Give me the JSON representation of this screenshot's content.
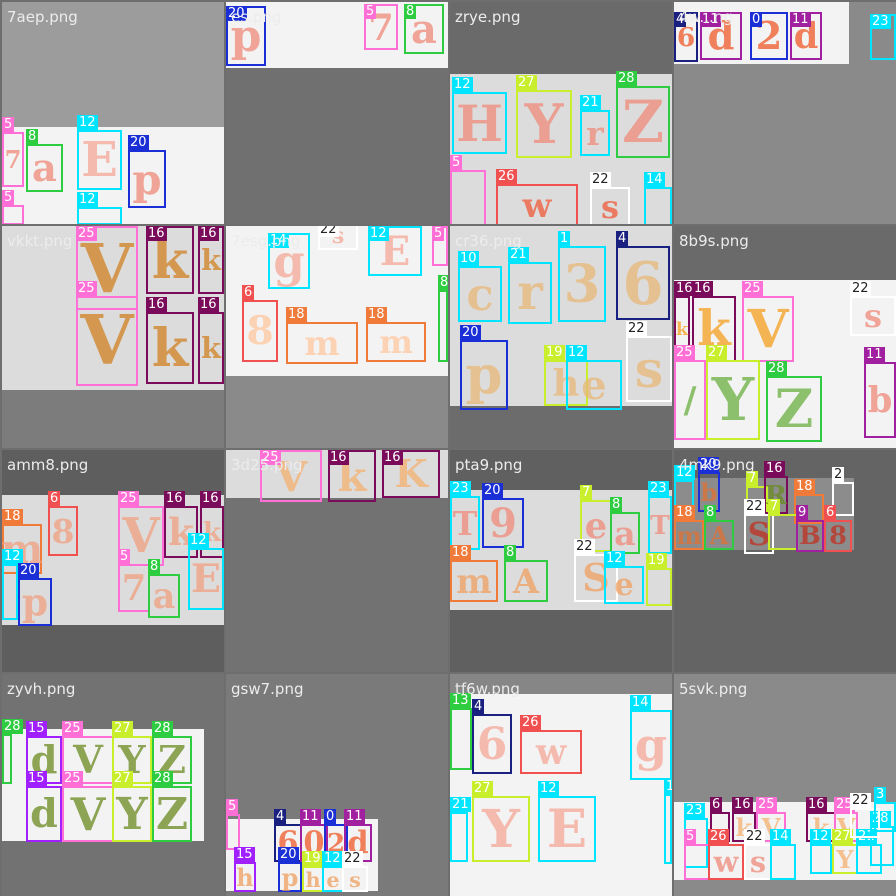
{
  "tiles": [
    {
      "title": "7aep.png",
      "bg": "#9c9c9c"
    },
    {
      "title": "es.png",
      "bg": "#707070"
    },
    {
      "title": "zrye.png",
      "bg": "#6a6a6a"
    },
    {
      "title": "4w...ng",
      "bg": "#8a8a8a"
    },
    {
      "title": "vkkt.png",
      "bg": "#7c7c7c"
    },
    {
      "title": "7esg.png",
      "bg": "#8a8a8a"
    },
    {
      "title": "cr36.png",
      "bg": "#6c6c6c"
    },
    {
      "title": "8b9s.png",
      "bg": "#6a6a6a"
    },
    {
      "title": "amm8.png",
      "bg": "#5e5e5e"
    },
    {
      "title": "3d25.png",
      "bg": "#727272"
    },
    {
      "title": "pta9.png",
      "bg": "#606060"
    },
    {
      "title": "4mk9.png",
      "bg": "#646464"
    },
    {
      "title": "zyvh.png",
      "bg": "#727272"
    },
    {
      "title": "gsw7.png",
      "bg": "#7a7a7a"
    },
    {
      "title": "tf6w.png",
      "bg": "#868686"
    },
    {
      "title": "5svk.png",
      "bg": "#8a8a8a"
    }
  ],
  "labels": [
    {
      "t": 0,
      "c": "#ff6fd6",
      "n": "5",
      "g": "7",
      "gc": "#f08a7a"
    },
    {
      "t": 0,
      "c": "#2ecc40",
      "n": "8",
      "g": "a",
      "gc": "#f08a7a"
    },
    {
      "t": 0,
      "c": "#00e5ff",
      "n": "12",
      "g": "E",
      "gc": "#f5a898"
    },
    {
      "t": 0,
      "c": "#1a2fd6",
      "n": "20",
      "g": "p",
      "gc": "#f08a7a"
    },
    {
      "t": 0,
      "c": "#ff6fd6",
      "n": "5",
      "g": "",
      "gc": "#f08a7a"
    },
    {
      "t": 0,
      "c": "#00e5ff",
      "n": "12",
      "g": "",
      "gc": "#f08a7a"
    },
    {
      "t": 1,
      "c": "#1a2fd6",
      "n": "20",
      "g": "p",
      "gc": "#f08a7a"
    },
    {
      "t": 1,
      "c": "#ff6fd6",
      "n": "5",
      "g": "7",
      "gc": "#f08a7a"
    },
    {
      "t": 1,
      "c": "#2ecc40",
      "n": "8",
      "g": "a",
      "gc": "#f08a7a"
    },
    {
      "t": 2,
      "c": "#00e5ff",
      "n": "12",
      "g": "H",
      "gc": "#f08a7a"
    },
    {
      "t": 2,
      "c": "#c8ee2c",
      "n": "27",
      "g": "Y",
      "gc": "#f08a7a"
    },
    {
      "t": 2,
      "c": "#00e5ff",
      "n": "21",
      "g": "r",
      "gc": "#f08a7a"
    },
    {
      "t": 2,
      "c": "#2ecc40",
      "n": "28",
      "g": "Z",
      "gc": "#f08a7a"
    },
    {
      "t": 2,
      "c": "#ff6fd6",
      "n": "5",
      "g": "",
      "gc": "#f05a3a"
    },
    {
      "t": 2,
      "c": "#f05050",
      "n": "26",
      "g": "w",
      "gc": "#f05a3a"
    },
    {
      "t": 2,
      "c": "#ffffff",
      "n": "22",
      "g": "s",
      "gc": "#f05a3a"
    },
    {
      "t": 2,
      "c": "#00e5ff",
      "n": "14",
      "g": "",
      "gc": "#f05a3a"
    },
    {
      "t": 3,
      "c": "#1a2080",
      "n": "4",
      "g": "6",
      "gc": "#f05a2a"
    },
    {
      "t": 3,
      "c": "#a020a0",
      "n": "11",
      "g": "d",
      "gc": "#f05a2a"
    },
    {
      "t": 3,
      "c": "#1a2fd6",
      "n": "0",
      "g": "2",
      "gc": "#f05a2a"
    },
    {
      "t": 3,
      "c": "#a020a0",
      "n": "11",
      "g": "d",
      "gc": "#f05a2a"
    },
    {
      "t": 3,
      "c": "#00e5ff",
      "n": "23",
      "g": "",
      "gc": "#2ecc40"
    },
    {
      "t": 4,
      "c": "#ff6fd6",
      "n": "25",
      "g": "V",
      "gc": "#d08020"
    },
    {
      "t": 4,
      "c": "#7a0a5a",
      "n": "16",
      "g": "k",
      "gc": "#d08020"
    },
    {
      "t": 4,
      "c": "#7a0a5a",
      "n": "16",
      "g": "k",
      "gc": "#d08020"
    },
    {
      "t": 4,
      "c": "#ff6fd6",
      "n": "25",
      "g": "V",
      "gc": "#d08020"
    },
    {
      "t": 4,
      "c": "#7a0a5a",
      "n": "16",
      "g": "k",
      "gc": "#d08020"
    },
    {
      "t": 4,
      "c": "#7a0a5a",
      "n": "16",
      "g": "k",
      "gc": "#d08020"
    },
    {
      "t": 5,
      "c": "#00e5ff",
      "n": "14",
      "g": "g",
      "gc": "#f5a898"
    },
    {
      "t": 5,
      "c": "#ffffff",
      "n": "22",
      "g": "s",
      "gc": "#f5a898"
    },
    {
      "t": 5,
      "c": "#00e5ff",
      "n": "12",
      "g": "E",
      "gc": "#f5a898"
    },
    {
      "t": 5,
      "c": "#ff6fd6",
      "n": "5",
      "g": "",
      "gc": "#f5a898"
    },
    {
      "t": 5,
      "c": "#f05050",
      "n": "6",
      "g": "8",
      "gc": "#ffc8a0"
    },
    {
      "t": 5,
      "c": "#f07a3a",
      "n": "18",
      "g": "m",
      "gc": "#ffc8a0"
    },
    {
      "t": 5,
      "c": "#f07a3a",
      "n": "18",
      "g": "m",
      "gc": "#ffc8a0"
    },
    {
      "t": 5,
      "c": "#2ecc40",
      "n": "8",
      "g": "",
      "gc": "#ffc8a0"
    },
    {
      "t": 6,
      "c": "#00e5ff",
      "n": "10",
      "g": "c",
      "gc": "#e8b878"
    },
    {
      "t": 6,
      "c": "#00e5ff",
      "n": "21",
      "g": "r",
      "gc": "#e8b878"
    },
    {
      "t": 6,
      "c": "#00e5ff",
      "n": "1",
      "g": "3",
      "gc": "#e8b878"
    },
    {
      "t": 6,
      "c": "#1a2080",
      "n": "4",
      "g": "6",
      "gc": "#e8b878"
    },
    {
      "t": 6,
      "c": "#1a2fd6",
      "n": "20",
      "g": "p",
      "gc": "#e8b878"
    },
    {
      "t": 6,
      "c": "#c8ee2c",
      "n": "19",
      "g": "h",
      "gc": "#e8b878"
    },
    {
      "t": 6,
      "c": "#00e5ff",
      "n": "12",
      "g": "e",
      "gc": "#e8b878"
    },
    {
      "t": 6,
      "c": "#ffffff",
      "n": "22",
      "g": "s",
      "gc": "#e8b878"
    },
    {
      "t": 7,
      "c": "#7a0a5a",
      "n": "16",
      "g": "k",
      "gc": "#f5a020"
    },
    {
      "t": 7,
      "c": "#7a0a5a",
      "n": "16",
      "g": "k",
      "gc": "#f5a020"
    },
    {
      "t": 7,
      "c": "#ff6fd6",
      "n": "25",
      "g": "V",
      "gc": "#f5a020"
    },
    {
      "t": 7,
      "c": "#ffffff",
      "n": "22",
      "g": "s",
      "gc": "#f08a7a"
    },
    {
      "t": 7,
      "c": "#ff6fd6",
      "n": "25",
      "g": "/",
      "gc": "#6ab040"
    },
    {
      "t": 7,
      "c": "#c8ee2c",
      "n": "27",
      "g": "Y",
      "gc": "#6ab040"
    },
    {
      "t": 7,
      "c": "#2ecc40",
      "n": "28",
      "g": "Z",
      "gc": "#6ab040"
    },
    {
      "t": 7,
      "c": "#a020a0",
      "n": "11",
      "g": "b",
      "gc": "#f08a7a"
    },
    {
      "t": 8,
      "c": "#f07a3a",
      "n": "18",
      "g": "m",
      "gc": "#f0a080"
    },
    {
      "t": 8,
      "c": "#f05050",
      "n": "6",
      "g": "8",
      "gc": "#f0a080"
    },
    {
      "t": 8,
      "c": "#ff6fd6",
      "n": "25",
      "g": "V",
      "gc": "#f0a080"
    },
    {
      "t": 8,
      "c": "#7a0a5a",
      "n": "16",
      "g": "k",
      "gc": "#f0a080"
    },
    {
      "t": 8,
      "c": "#7a0a5a",
      "n": "16",
      "g": "k",
      "gc": "#f0a080"
    },
    {
      "t": 8,
      "c": "#00e5ff",
      "n": "12",
      "g": "",
      "gc": "#f0a080"
    },
    {
      "t": 8,
      "c": "#1a2fd6",
      "n": "20",
      "g": "p",
      "gc": "#f0a080"
    },
    {
      "t": 8,
      "c": "#ff6fd6",
      "n": "5",
      "g": "7",
      "gc": "#f0a080"
    },
    {
      "t": 8,
      "c": "#2ecc40",
      "n": "8",
      "g": "a",
      "gc": "#f0a080"
    },
    {
      "t": 8,
      "c": "#00e5ff",
      "n": "12",
      "g": "E",
      "gc": "#f0a080"
    },
    {
      "t": 9,
      "c": "#ff6fd6",
      "n": "25",
      "g": "V",
      "gc": "#f5b070"
    },
    {
      "t": 9,
      "c": "#7a0a5a",
      "n": "16",
      "g": "k",
      "gc": "#f5b070"
    },
    {
      "t": 9,
      "c": "#7a0a5a",
      "n": "16",
      "g": "K",
      "gc": "#f5b070"
    },
    {
      "t": 10,
      "c": "#00e5ff",
      "n": "23",
      "g": "T",
      "gc": "#f08a7a"
    },
    {
      "t": 10,
      "c": "#1a2fd6",
      "n": "20",
      "g": "9",
      "gc": "#f08a7a"
    },
    {
      "t": 10,
      "c": "#c8ee2c",
      "n": "7",
      "g": "e",
      "gc": "#f08a7a"
    },
    {
      "t": 10,
      "c": "#2ecc40",
      "n": "8",
      "g": "a",
      "gc": "#f08a7a"
    },
    {
      "t": 10,
      "c": "#00e5ff",
      "n": "23",
      "g": "T",
      "gc": "#f08a7a"
    },
    {
      "t": 10,
      "c": "#f07a3a",
      "n": "18",
      "g": "m",
      "gc": "#f0a060"
    },
    {
      "t": 10,
      "c": "#2ecc40",
      "n": "8",
      "g": "A",
      "gc": "#f0a060"
    },
    {
      "t": 10,
      "c": "#ffffff",
      "n": "22",
      "g": "S",
      "gc": "#f0a060"
    },
    {
      "t": 10,
      "c": "#00e5ff",
      "n": "12",
      "g": "e",
      "gc": "#f0a060"
    },
    {
      "t": 10,
      "c": "#c8ee2c",
      "n": "19",
      "g": "",
      "gc": "#f0a060"
    },
    {
      "t": 11,
      "c": "#00e5ff",
      "n": "12",
      "g": "",
      "gc": "#e07030"
    },
    {
      "t": 11,
      "c": "#1a2fd6",
      "n": "20",
      "g": "b",
      "gc": "#e07030"
    },
    {
      "t": 11,
      "c": "#c8ee2c",
      "n": "7",
      "g": "",
      "gc": "#6a8a20"
    },
    {
      "t": 11,
      "c": "#7a0a5a",
      "n": "16",
      "g": "R",
      "gc": "#6a8a20"
    },
    {
      "t": 11,
      "c": "#f07a3a",
      "n": "18",
      "g": "",
      "gc": "#6a8a20"
    },
    {
      "t": 11,
      "c": "#ffffff",
      "n": "2",
      "g": "",
      "gc": "#6a8a20"
    },
    {
      "t": 11,
      "c": "#f07a3a",
      "n": "18",
      "g": "m",
      "gc": "#e07030"
    },
    {
      "t": 11,
      "c": "#2ecc40",
      "n": "8",
      "g": "A",
      "gc": "#e07030"
    },
    {
      "t": 11,
      "c": "#ffffff",
      "n": "22",
      "g": "S",
      "gc": "#c03020"
    },
    {
      "t": 11,
      "c": "#c8ee2c",
      "n": "7",
      "g": "",
      "gc": "#c03020"
    },
    {
      "t": 11,
      "c": "#a020a0",
      "n": "9",
      "g": "B",
      "gc": "#c03020"
    },
    {
      "t": 11,
      "c": "#f05050",
      "n": "6",
      "g": "8",
      "gc": "#c03020"
    },
    {
      "t": 12,
      "c": "#2ecc40",
      "n": "28",
      "g": "",
      "gc": "#6a8a20"
    },
    {
      "t": 12,
      "c": "#a020ff",
      "n": "15",
      "g": "d",
      "gc": "#6a8a20"
    },
    {
      "t": 12,
      "c": "#ff6fd6",
      "n": "25",
      "g": "V",
      "gc": "#6a8a20"
    },
    {
      "t": 12,
      "c": "#c8ee2c",
      "n": "27",
      "g": "Y",
      "gc": "#6a8a20"
    },
    {
      "t": 12,
      "c": "#2ecc40",
      "n": "28",
      "g": "Z",
      "gc": "#6a8a20"
    },
    {
      "t": 12,
      "c": "#a020ff",
      "n": "15",
      "g": "d",
      "gc": "#6a8a20"
    },
    {
      "t": 12,
      "c": "#ff6fd6",
      "n": "25",
      "g": "V",
      "gc": "#6a8a20"
    },
    {
      "t": 12,
      "c": "#c8ee2c",
      "n": "27",
      "g": "Y",
      "gc": "#6a8a20"
    },
    {
      "t": 12,
      "c": "#2ecc40",
      "n": "28",
      "g": "Z",
      "gc": "#6a8a20"
    },
    {
      "t": 13,
      "c": "#ff6fd6",
      "n": "5",
      "g": "",
      "gc": "#f05a2a"
    },
    {
      "t": 13,
      "c": "#1a2080",
      "n": "4",
      "g": "6",
      "gc": "#f05a2a"
    },
    {
      "t": 13,
      "c": "#a020a0",
      "n": "11",
      "g": "0",
      "gc": "#f05a2a"
    },
    {
      "t": 13,
      "c": "#1a2fd6",
      "n": "0",
      "g": "2",
      "gc": "#f05a2a"
    },
    {
      "t": 13,
      "c": "#a020a0",
      "n": "11",
      "g": "d",
      "gc": "#f05a2a"
    },
    {
      "t": 13,
      "c": "#a020ff",
      "n": "15",
      "g": "h",
      "gc": "#f0a060"
    },
    {
      "t": 13,
      "c": "#1a2fd6",
      "n": "20",
      "g": "p",
      "gc": "#f0a060"
    },
    {
      "t": 13,
      "c": "#c8ee2c",
      "n": "19",
      "g": "h",
      "gc": "#f0a060"
    },
    {
      "t": 13,
      "c": "#00e5ff",
      "n": "12",
      "g": "e",
      "gc": "#f0a060"
    },
    {
      "t": 13,
      "c": "#ffffff",
      "n": "22",
      "g": "s",
      "gc": "#f0a060"
    },
    {
      "t": 14,
      "c": "#2ecc40",
      "n": "13",
      "g": "",
      "gc": "#6ab040"
    },
    {
      "t": 14,
      "c": "#1a2080",
      "n": "4",
      "g": "6",
      "gc": "#f5a898"
    },
    {
      "t": 14,
      "c": "#f05050",
      "n": "26",
      "g": "w",
      "gc": "#f5a898"
    },
    {
      "t": 14,
      "c": "#00e5ff",
      "n": "14",
      "g": "g",
      "gc": "#f5a898"
    },
    {
      "t": 14,
      "c": "#00e5ff",
      "n": "21",
      "g": "",
      "gc": "#f5a898"
    },
    {
      "t": 14,
      "c": "#c8ee2c",
      "n": "27",
      "g": "Y",
      "gc": "#f5a898"
    },
    {
      "t": 14,
      "c": "#00e5ff",
      "n": "12",
      "g": "E",
      "gc": "#f5a898"
    },
    {
      "t": 14,
      "c": "#00e5ff",
      "n": "10",
      "g": "",
      "gc": "#f5a898"
    },
    {
      "t": 15,
      "c": "#00e5ff",
      "n": "23",
      "g": "",
      "gc": "#f08a7a"
    },
    {
      "t": 15,
      "c": "#7a0a5a",
      "n": "6",
      "g": "",
      "gc": "#f08a7a"
    },
    {
      "t": 15,
      "c": "#7a0a5a",
      "n": "16",
      "g": "k",
      "gc": "#f5b070"
    },
    {
      "t": 15,
      "c": "#ff6fd6",
      "n": "25",
      "g": "V",
      "gc": "#f5b070"
    },
    {
      "t": 15,
      "c": "#ff6fd6",
      "n": "5",
      "g": "",
      "gc": "#f08a7a"
    },
    {
      "t": 15,
      "c": "#f05050",
      "n": "26",
      "g": "w",
      "gc": "#f08a7a"
    },
    {
      "t": 15,
      "c": "#ffffff",
      "n": "22",
      "g": "s",
      "gc": "#f08a7a"
    },
    {
      "t": 15,
      "c": "#00e5ff",
      "n": "14",
      "g": "",
      "gc": "#f08a7a"
    },
    {
      "t": 15,
      "c": "#7a0a5a",
      "n": "16",
      "g": "k",
      "gc": "#f5b070"
    },
    {
      "t": 15,
      "c": "#ff6fd6",
      "n": "25",
      "g": "V",
      "gc": "#f5b070"
    },
    {
      "t": 15,
      "c": "#00e5ff",
      "n": "12",
      "g": "",
      "gc": "#f5b070"
    },
    {
      "t": 15,
      "c": "#c8ee2c",
      "n": "27",
      "g": "Y",
      "gc": "#f5b070"
    },
    {
      "t": 15,
      "c": "#00e5ff",
      "n": "21",
      "g": "",
      "gc": "#f5b070"
    },
    {
      "t": 15,
      "c": "#00e5ff",
      "n": "28",
      "g": "",
      "gc": "#f5b070"
    },
    {
      "t": 15,
      "c": "#ffffff",
      "n": "22",
      "g": "",
      "gc": "#f5b070"
    },
    {
      "t": 15,
      "c": "#00e5ff",
      "n": "3",
      "g": "",
      "gc": "#f5b070"
    }
  ]
}
